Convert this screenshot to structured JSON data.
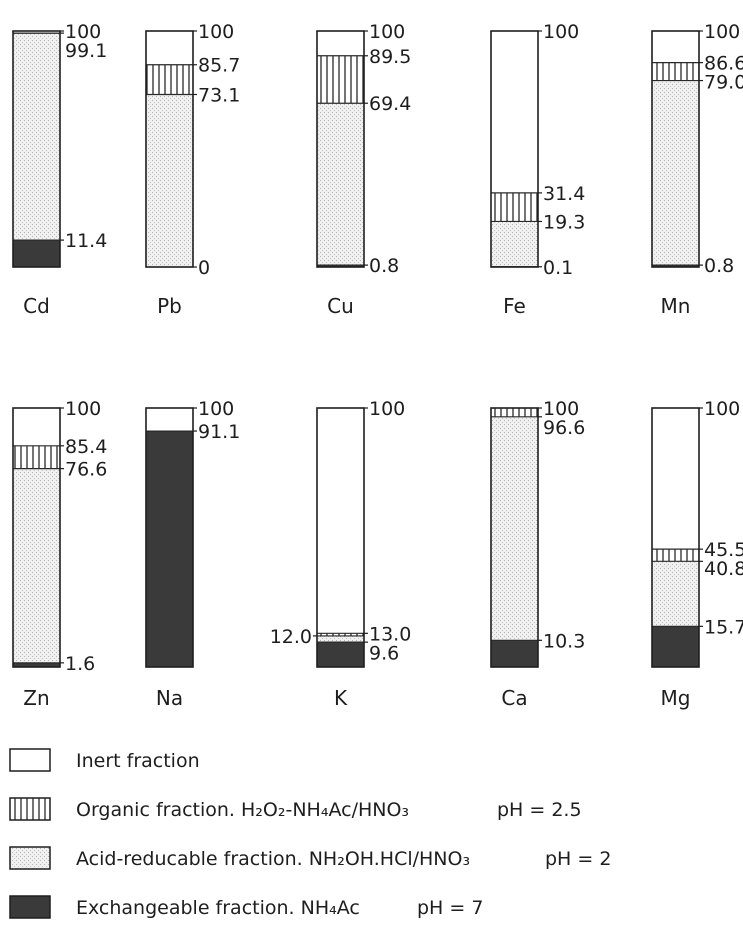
{
  "chart_data": {
    "type": "bar",
    "subtype": "stacked-100-percent",
    "unit": "%",
    "ylim": [
      0,
      100
    ],
    "grid": false,
    "legend_position": "bottom",
    "fraction_order_bottom_to_top": [
      "exchangeable",
      "acid",
      "organic",
      "inert"
    ],
    "fractions": {
      "inert": {
        "pattern": "white"
      },
      "organic": {
        "pattern": "vertical-hatch"
      },
      "acid": {
        "pattern": "dotted"
      },
      "exchangeable": {
        "pattern": "solid-dark",
        "color": "#3a3a3a"
      }
    },
    "rows": [
      {
        "bars": [
          {
            "element": "Cd",
            "bounds": [
              11.4,
              99.1,
              99.1
            ],
            "labels": [
              {
                "text": "100",
                "v": 100
              },
              {
                "text": "99.1",
                "v": 99.1
              },
              {
                "text": "11.4",
                "v": 11.4
              }
            ]
          },
          {
            "element": "Pb",
            "bounds": [
              0,
              73.1,
              85.7
            ],
            "labels": [
              {
                "text": "100",
                "v": 100
              },
              {
                "text": "85.7",
                "v": 85.7
              },
              {
                "text": "73.1",
                "v": 73.1
              },
              {
                "text": "0",
                "v": 0
              }
            ]
          },
          {
            "element": "Cu",
            "bounds": [
              0.8,
              69.4,
              89.5
            ],
            "labels": [
              {
                "text": "100",
                "v": 100
              },
              {
                "text": "89.5",
                "v": 89.5
              },
              {
                "text": "69.4",
                "v": 69.4
              },
              {
                "text": "0.8",
                "v": 0.8
              }
            ]
          },
          {
            "element": "Fe",
            "bounds": [
              0.1,
              19.3,
              31.4
            ],
            "labels": [
              {
                "text": "100",
                "v": 100
              },
              {
                "text": "31.4",
                "v": 31.4
              },
              {
                "text": "19.3",
                "v": 19.3
              },
              {
                "text": "0.1",
                "v": 0.1
              }
            ]
          },
          {
            "element": "Mn",
            "bounds": [
              0.8,
              79.0,
              86.6
            ],
            "labels": [
              {
                "text": "100",
                "v": 100
              },
              {
                "text": "86.6",
                "v": 86.6
              },
              {
                "text": "79.0",
                "v": 79.0
              },
              {
                "text": "0.8",
                "v": 0.8
              }
            ]
          }
        ]
      },
      {
        "bars": [
          {
            "element": "Zn",
            "bounds": [
              1.6,
              76.6,
              85.4
            ],
            "labels": [
              {
                "text": "100",
                "v": 100
              },
              {
                "text": "85.4",
                "v": 85.4
              },
              {
                "text": "76.6",
                "v": 76.6
              },
              {
                "text": "1.6",
                "v": 1.6
              }
            ]
          },
          {
            "element": "Na",
            "bounds": [
              91.1,
              91.1,
              91.1
            ],
            "labels": [
              {
                "text": "100",
                "v": 100
              },
              {
                "text": "91.1",
                "v": 91.1
              }
            ]
          },
          {
            "element": "K",
            "bounds": [
              9.6,
              12.0,
              13.0
            ],
            "labels": [
              {
                "text": "100",
                "v": 100
              },
              {
                "text": "13.0",
                "v": 13.0
              },
              {
                "text": "12.0",
                "v": 12.0,
                "side": "left"
              },
              {
                "text": "9.6",
                "v": 9.6
              }
            ]
          },
          {
            "element": "Ca",
            "bounds": [
              10.3,
              96.6,
              100
            ],
            "labels": [
              {
                "text": "100",
                "v": 100
              },
              {
                "text": "96.6",
                "v": 96.6
              },
              {
                "text": "10.3",
                "v": 10.3
              }
            ]
          },
          {
            "element": "Mg",
            "bounds": [
              15.7,
              40.8,
              45.5
            ],
            "labels": [
              {
                "text": "100",
                "v": 100
              },
              {
                "text": "45.5",
                "v": 45.5
              },
              {
                "text": "40.8",
                "v": 40.8
              },
              {
                "text": "15.7",
                "v": 15.7
              }
            ]
          }
        ]
      }
    ],
    "legend": [
      {
        "fraction": "inert",
        "text": "Inert fraction",
        "ph": ""
      },
      {
        "fraction": "organic",
        "text": "Organic fraction. H₂O₂-NH₄Ac/HNO₃",
        "ph": "pH = 2.5"
      },
      {
        "fraction": "acid",
        "text": "Acid-reducable fraction. NH₂OH.HCl/HNO₃",
        "ph": "pH = 2"
      },
      {
        "fraction": "exchangeable",
        "text": "Exchangeable fraction. NH₄Ac",
        "ph": "pH = 7"
      }
    ]
  }
}
